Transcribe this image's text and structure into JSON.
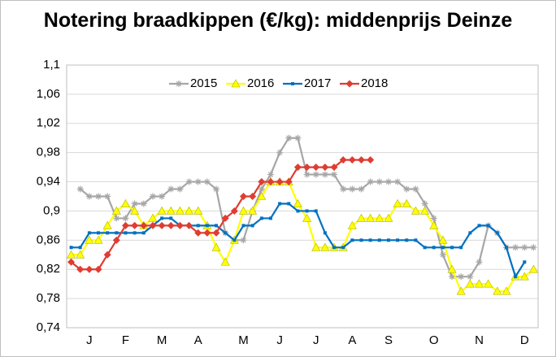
{
  "chart_data": {
    "type": "line",
    "title": "Notering braadkippen (€/kg): middenprijs Deinze",
    "categories": [
      null,
      null,
      "J",
      null,
      null,
      null,
      "F",
      null,
      null,
      null,
      "M",
      null,
      null,
      null,
      "A",
      null,
      null,
      null,
      null,
      "M",
      null,
      null,
      null,
      "J",
      null,
      null,
      null,
      "J",
      null,
      null,
      null,
      "A",
      null,
      null,
      null,
      "S",
      null,
      null,
      null,
      null,
      "O",
      null,
      null,
      null,
      null,
      "N",
      null,
      null,
      null,
      null,
      "D",
      null
    ],
    "ylim": [
      0.74,
      1.1
    ],
    "yticks": [
      {
        "value": 0.74,
        "label": "0,74"
      },
      {
        "value": 0.78,
        "label": "0,78"
      },
      {
        "value": 0.82,
        "label": "0,82"
      },
      {
        "value": 0.86,
        "label": "0,86"
      },
      {
        "value": 0.9,
        "label": "0,9"
      },
      {
        "value": 0.94,
        "label": "0,94"
      },
      {
        "value": 0.98,
        "label": "0,98"
      },
      {
        "value": 1.02,
        "label": "1,02"
      },
      {
        "value": 1.06,
        "label": "1,06"
      },
      {
        "value": 1.1,
        "label": "1,1"
      }
    ],
    "grid": true,
    "legend": "top",
    "series": [
      {
        "name": "2015",
        "color": "#a6a6a6",
        "marker": "star",
        "values": [
          null,
          0.93,
          0.92,
          0.92,
          0.92,
          0.89,
          0.89,
          0.91,
          0.91,
          0.92,
          0.92,
          0.93,
          0.93,
          0.94,
          0.94,
          0.94,
          0.93,
          0.87,
          0.86,
          0.86,
          0.9,
          0.93,
          0.95,
          0.98,
          1.0,
          1.0,
          0.95,
          0.95,
          0.95,
          0.95,
          0.93,
          0.93,
          0.93,
          0.94,
          0.94,
          0.94,
          0.94,
          0.93,
          0.93,
          0.91,
          0.89,
          0.84,
          0.81,
          0.81,
          0.81,
          0.83,
          0.88,
          0.87,
          0.85,
          0.85,
          0.85,
          0.85
        ]
      },
      {
        "name": "2016",
        "color": "#ffff00",
        "marker": "triangle",
        "values": [
          0.84,
          0.84,
          0.86,
          0.86,
          0.88,
          0.9,
          0.91,
          0.9,
          0.88,
          0.89,
          0.9,
          0.9,
          0.9,
          0.9,
          0.9,
          0.88,
          0.85,
          0.83,
          0.86,
          0.9,
          0.9,
          0.92,
          0.94,
          0.94,
          0.94,
          0.91,
          0.89,
          0.85,
          0.85,
          0.85,
          0.85,
          0.88,
          0.89,
          0.89,
          0.89,
          0.89,
          0.91,
          0.91,
          0.9,
          0.9,
          0.88,
          0.86,
          0.82,
          0.79,
          0.8,
          0.8,
          0.8,
          0.79,
          0.79,
          0.81,
          0.81,
          0.82
        ]
      },
      {
        "name": "2017",
        "color": "#0070c0",
        "marker": "square",
        "values": [
          0.85,
          0.85,
          0.87,
          0.87,
          0.87,
          0.87,
          0.87,
          0.87,
          0.87,
          0.88,
          0.89,
          0.89,
          0.88,
          0.88,
          0.88,
          0.88,
          0.88,
          0.87,
          0.86,
          0.88,
          0.88,
          0.89,
          0.89,
          0.91,
          0.91,
          0.9,
          0.9,
          0.9,
          0.87,
          0.85,
          0.85,
          0.86,
          0.86,
          0.86,
          0.86,
          0.86,
          0.86,
          0.86,
          0.86,
          0.85,
          0.85,
          0.85,
          0.85,
          0.85,
          0.87,
          0.88,
          0.88,
          0.87,
          0.85,
          0.81,
          0.83,
          null
        ]
      },
      {
        "name": "2018",
        "color": "#e03c31",
        "marker": "diamond",
        "values": [
          0.83,
          0.82,
          0.82,
          0.82,
          0.84,
          0.86,
          0.88,
          0.88,
          0.88,
          0.88,
          0.88,
          0.88,
          0.88,
          0.88,
          0.87,
          0.87,
          0.87,
          0.89,
          0.9,
          0.92,
          0.92,
          0.94,
          0.94,
          0.94,
          0.94,
          0.96,
          0.96,
          0.96,
          0.96,
          0.96,
          0.97,
          0.97,
          0.97,
          0.97,
          null,
          null,
          null,
          null,
          null,
          null,
          null,
          null,
          null,
          null,
          null,
          null,
          null,
          null,
          null,
          null,
          null,
          null
        ]
      }
    ]
  }
}
